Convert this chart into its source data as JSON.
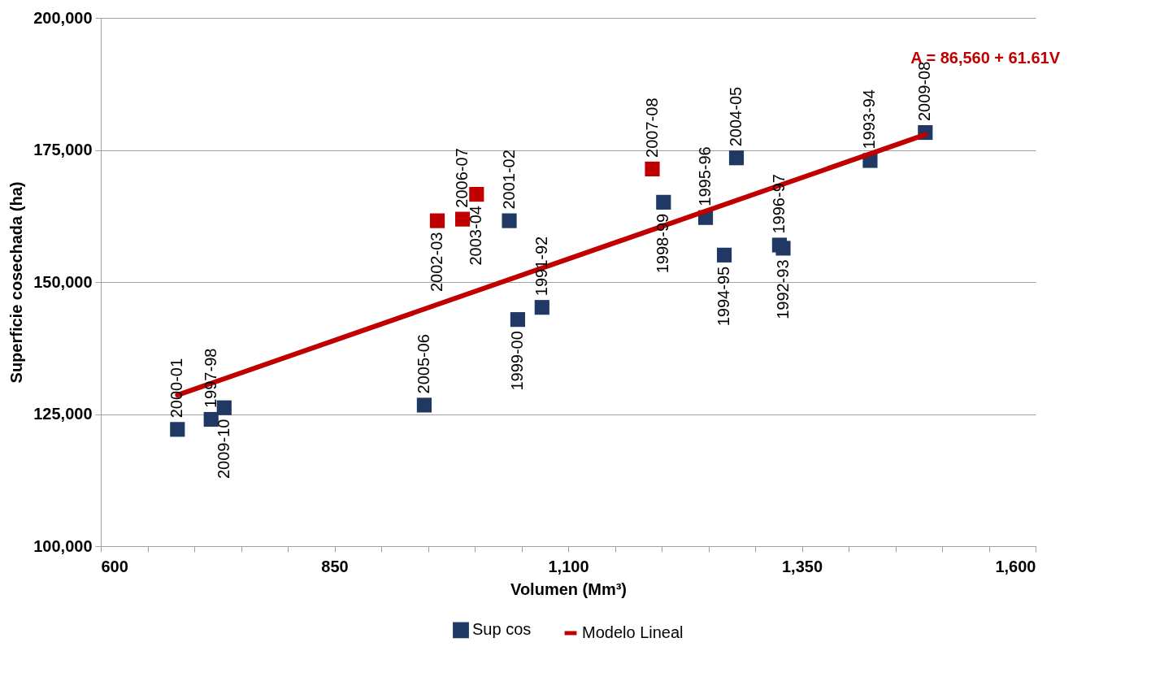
{
  "chart_data": {
    "type": "scatter",
    "xlabel": "Volumen (Mm³)",
    "ylabel": "Superficie cosechada (ha)",
    "xlim": [
      600,
      1600
    ],
    "xticks": [
      {
        "value": 600,
        "label": "600"
      },
      {
        "value": 650,
        "label": null
      },
      {
        "value": 700,
        "label": null
      },
      {
        "value": 750,
        "label": null
      },
      {
        "value": 800,
        "label": null
      },
      {
        "value": 850,
        "label": "850"
      },
      {
        "value": 900,
        "label": null
      },
      {
        "value": 950,
        "label": null
      },
      {
        "value": 1000,
        "label": null
      },
      {
        "value": 1050,
        "label": null
      },
      {
        "value": 1100,
        "label": "1,100"
      },
      {
        "value": 1150,
        "label": null
      },
      {
        "value": 1200,
        "label": null
      },
      {
        "value": 1250,
        "label": null
      },
      {
        "value": 1300,
        "label": null
      },
      {
        "value": 1350,
        "label": "1,350"
      },
      {
        "value": 1400,
        "label": null
      },
      {
        "value": 1450,
        "label": null
      },
      {
        "value": 1500,
        "label": null
      },
      {
        "value": 1550,
        "label": null
      },
      {
        "value": 1600,
        "label": "1,600"
      }
    ],
    "ylim": [
      100000,
      200000
    ],
    "yticks": [
      {
        "value": 100000,
        "label": "100,000"
      },
      {
        "value": 125000,
        "label": "125,000"
      },
      {
        "value": 150000,
        "label": "150,000"
      },
      {
        "value": 175000,
        "label": "175,000"
      },
      {
        "value": 200000,
        "label": "200,000"
      }
    ],
    "grid": "y",
    "legend": "bottom",
    "marker": "square",
    "series": [
      {
        "name": "Sup cos",
        "color": "#1f3864",
        "x": [
          682,
          718,
          732,
          946,
          960,
          987,
          1002,
          1037,
          1046,
          1072,
          1190,
          1202,
          1247,
          1267,
          1280,
          1326,
          1330,
          1423,
          1482
        ],
        "values": [
          122100,
          124000,
          126200,
          126700,
          161600,
          161900,
          166600,
          161600,
          142900,
          145200,
          171400,
          165100,
          162200,
          155100,
          173500,
          157000,
          156400,
          173000,
          178300
        ],
        "colors": [
          "#1f3864",
          "#1f3864",
          "#1f3864",
          "#1f3864",
          "#c00000",
          "#c00000",
          "#c00000",
          "#1f3864",
          "#1f3864",
          "#1f3864",
          "#c00000",
          "#1f3864",
          "#1f3864",
          "#1f3864",
          "#1f3864",
          "#1f3864",
          "#1f3864",
          "#1f3864",
          "#1f3864"
        ]
      },
      {
        "name": "Modelo Lineal",
        "type": "line",
        "marker": "none",
        "color": "#c00000",
        "x": [
          682,
          1482
        ],
        "values": [
          128600,
          177900
        ]
      }
    ],
    "annotations": [
      "A = 86,560 + 61.61V",
      {
        "text": "2000-01",
        "x": 682,
        "y": 122100
      },
      {
        "text": "1997-98",
        "x": 718,
        "y": 124000
      },
      {
        "text": "2009-10",
        "x": 732,
        "y": 126200
      },
      {
        "text": "2005-06",
        "x": 946,
        "y": 126700
      },
      {
        "text": "2002-03",
        "x": 960,
        "y": 161600
      },
      {
        "text": "2006-07",
        "x": 987,
        "y": 161900
      },
      {
        "text": "2003-04",
        "x": 1002,
        "y": 166600
      },
      {
        "text": "2001-02",
        "x": 1037,
        "y": 161600
      },
      {
        "text": "1999-00",
        "x": 1046,
        "y": 142900
      },
      {
        "text": "1991-92",
        "x": 1072,
        "y": 145200
      },
      {
        "text": "2007-08",
        "x": 1190,
        "y": 171400
      },
      {
        "text": "1998-99",
        "x": 1202,
        "y": 165100
      },
      {
        "text": "1995-96",
        "x": 1247,
        "y": 162200
      },
      {
        "text": "1994-95",
        "x": 1267,
        "y": 155100
      },
      {
        "text": "2004-05",
        "x": 1280,
        "y": 173500
      },
      {
        "text": "1996-97",
        "x": 1326,
        "y": 157000
      },
      {
        "text": "1992-93",
        "x": 1330,
        "y": 156400
      },
      {
        "text": "1993-94",
        "x": 1423,
        "y": 173000
      },
      {
        "text": "2009-08",
        "x": 1482,
        "y": 178300
      }
    ]
  }
}
